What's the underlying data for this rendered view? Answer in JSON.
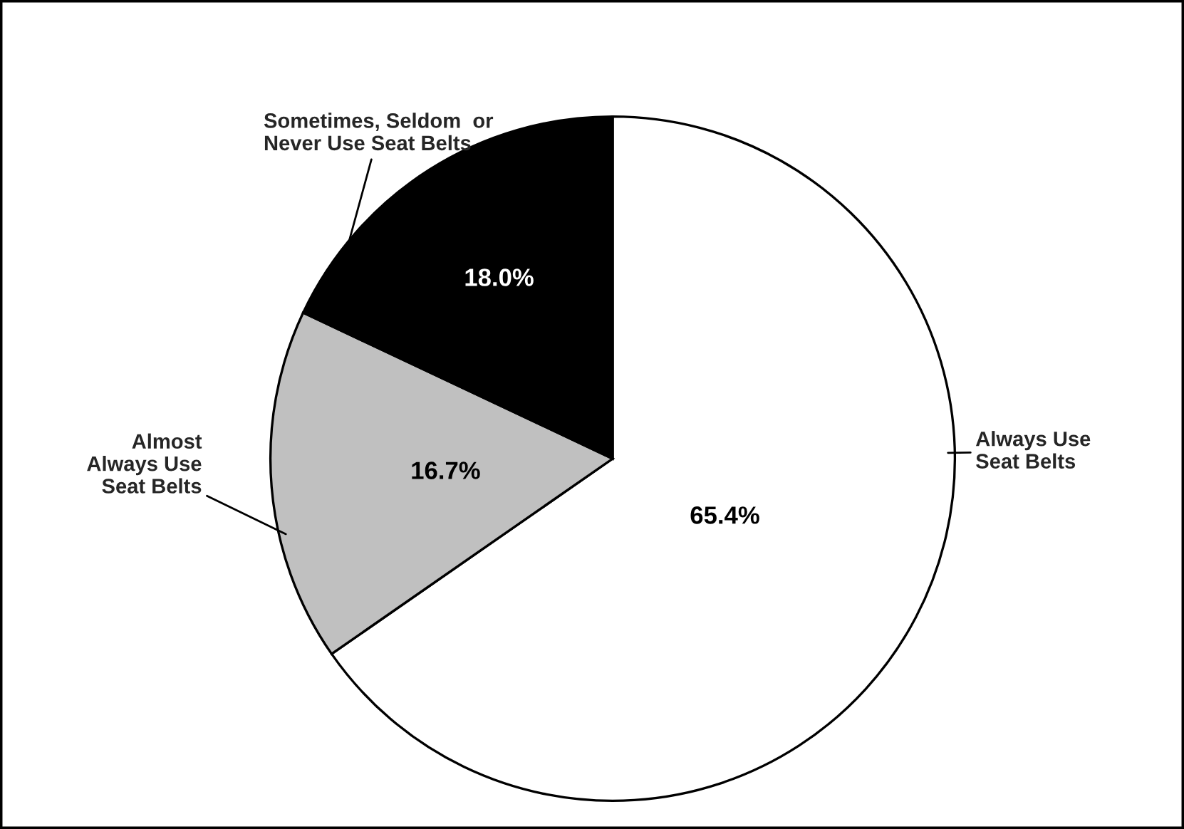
{
  "chart_data": {
    "type": "pie",
    "categories": [
      "Always Use\nSeat Belts",
      "Almost\nAlways Use\nSeat Belts",
      "Sometimes, Seldom  or\nNever Use Seat Belts"
    ],
    "values": [
      65.4,
      16.7,
      18.0
    ],
    "colors": [
      "#ffffff",
      "#c0c0c0",
      "#000000"
    ],
    "value_labels": [
      "65.4%",
      "16.7%",
      "18.0%"
    ]
  }
}
